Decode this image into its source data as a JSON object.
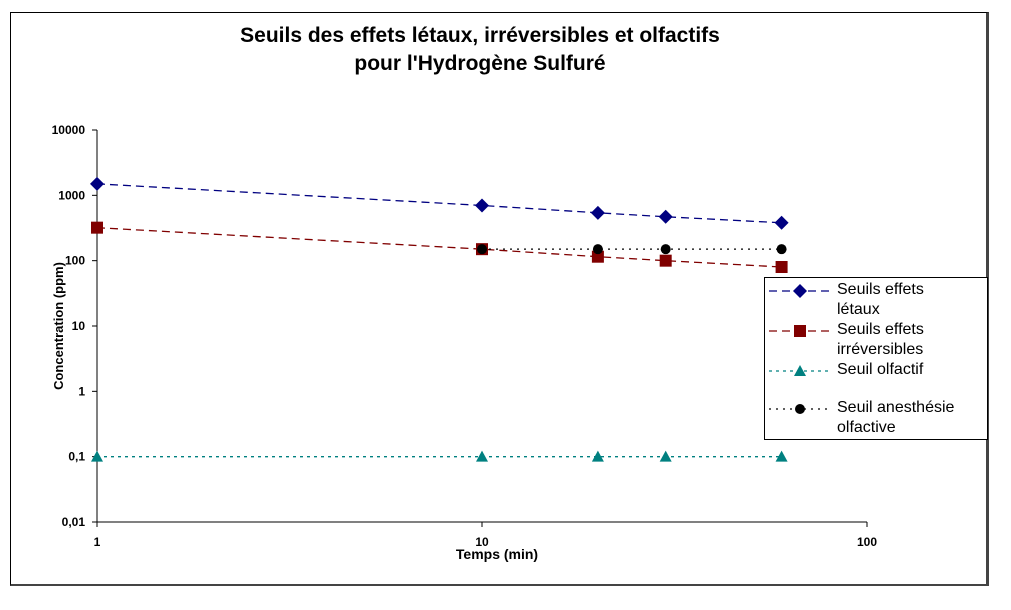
{
  "chart_data": {
    "type": "line",
    "title": [
      "Seuils des effets létaux, irréversibles et olfactifs",
      "pour l'Hydrogène Sulfuré"
    ],
    "xlabel": "Temps (min)",
    "ylabel": "Concentration (ppm)",
    "xscale": "log",
    "yscale": "log",
    "xlim": [
      1,
      100
    ],
    "ylim": [
      0.01,
      10000
    ],
    "x_ticks": [
      {
        "v": 1,
        "label": "1"
      },
      {
        "v": 10,
        "label": "10"
      },
      {
        "v": 100,
        "label": "100"
      }
    ],
    "y_ticks": [
      {
        "v": 0.01,
        "label": "0,01"
      },
      {
        "v": 0.1,
        "label": "0,1"
      },
      {
        "v": 1,
        "label": "1"
      },
      {
        "v": 10,
        "label": "10"
      },
      {
        "v": 100,
        "label": "100"
      },
      {
        "v": 1000,
        "label": "1000"
      },
      {
        "v": 10000,
        "label": "10000"
      }
    ],
    "grid": false,
    "legend_position": "right",
    "series": [
      {
        "name": "Seuils effets létaux",
        "legend": [
          "Seuils effets",
          "létaux"
        ],
        "color": "#000080",
        "marker": "diamond",
        "dash": "8,5",
        "x": [
          1,
          10,
          20,
          30,
          60
        ],
        "y": [
          1500,
          700,
          540,
          470,
          380
        ]
      },
      {
        "name": "Seuils effets irréversibles",
        "legend": [
          "Seuils effets",
          "irréversibles"
        ],
        "color": "#800000",
        "marker": "square",
        "dash": "8,5",
        "x": [
          1,
          10,
          20,
          30,
          60
        ],
        "y": [
          320,
          150,
          115,
          100,
          80
        ]
      },
      {
        "name": "Seuil olfactif",
        "legend": [
          "Seuil olfactif"
        ],
        "color": "#008080",
        "marker": "triangle",
        "dash": "3,4",
        "x": [
          1,
          10,
          20,
          30,
          60
        ],
        "y": [
          0.1,
          0.1,
          0.1,
          0.1,
          0.1
        ]
      },
      {
        "name": "Seuil anesthésie olfactive",
        "legend": [
          "Seuil anesthésie",
          "olfactive"
        ],
        "color": "#000000",
        "marker": "circle",
        "dash": "2,5",
        "x": [
          10,
          20,
          30,
          60
        ],
        "y": [
          150,
          150,
          150,
          150
        ]
      }
    ]
  }
}
